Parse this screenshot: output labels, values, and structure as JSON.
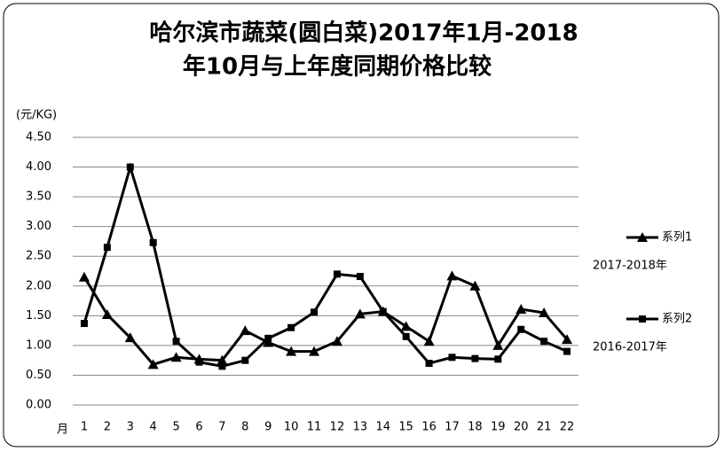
{
  "chart_data": {
    "type": "line",
    "title": [
      "哈尔滨市蔬菜(圆白菜)2017年1月-2018",
      "年10月与上年度同期价格比较"
    ],
    "y_label": "(元/KG)",
    "x_label": "月",
    "categories": [
      "1",
      "2",
      "3",
      "4",
      "5",
      "6",
      "7",
      "8",
      "9",
      "10",
      "11",
      "12",
      "13",
      "14",
      "15",
      "16",
      "17",
      "18",
      "19",
      "20",
      "21",
      "22"
    ],
    "series": [
      {
        "name": "系列1",
        "color": "#000000",
        "marker": "triangle",
        "annotation": "2017-2018年",
        "values": [
          2.15,
          1.52,
          1.13,
          0.68,
          0.8,
          0.77,
          0.75,
          1.25,
          1.05,
          0.9,
          0.9,
          1.07,
          1.53,
          1.57,
          1.32,
          1.07,
          2.17,
          2.0,
          1.0,
          1.61,
          1.55,
          1.1
        ]
      },
      {
        "name": "系列2",
        "color": "#000000",
        "marker": "square",
        "annotation": "2016-2017年",
        "values": [
          1.37,
          2.65,
          4.0,
          2.73,
          1.07,
          0.72,
          0.65,
          0.75,
          1.12,
          1.3,
          1.56,
          2.2,
          2.16,
          1.57,
          1.15,
          0.7,
          0.8,
          0.78,
          0.77,
          1.27,
          1.07,
          0.9
        ]
      }
    ],
    "ylim": [
      0,
      4.5
    ],
    "yticks": [
      {
        "value": 0,
        "label": "0.00"
      },
      {
        "value": 0.5,
        "label": "0.50"
      },
      {
        "value": 1,
        "label": "1.00"
      },
      {
        "value": 1.5,
        "label": "1.50"
      },
      {
        "value": 2,
        "label": "2.00"
      },
      {
        "value": 2.5,
        "label": "2.50"
      },
      {
        "value": 3,
        "label": "3.00"
      },
      {
        "value": 3.5,
        "label": "3.50"
      },
      {
        "value": 4,
        "label": "4.00"
      },
      {
        "value": 4.5,
        "label": "4.50"
      }
    ],
    "grid": true,
    "legend": "right"
  }
}
